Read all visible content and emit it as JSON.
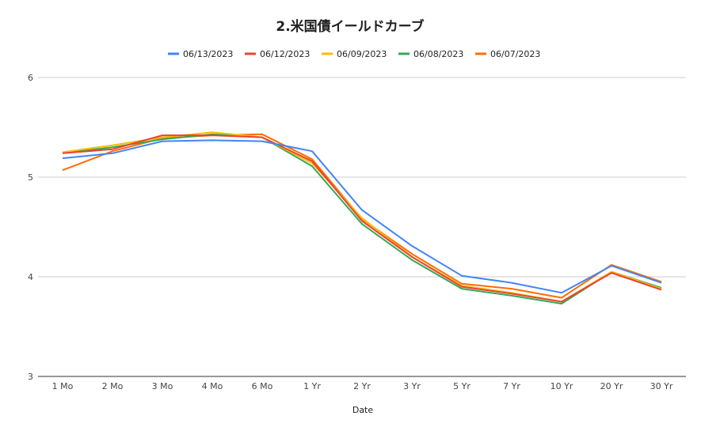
{
  "chart_data": {
    "type": "line",
    "title": "2.米国債イールドカーブ",
    "xlabel": "Date",
    "ylabel": "",
    "categories": [
      "1 Mo",
      "2 Mo",
      "3 Mo",
      "4 Mo",
      "6 Mo",
      "1 Yr",
      "2 Yr",
      "3 Yr",
      "5 Yr",
      "7 Yr",
      "10 Yr",
      "20 Yr",
      "30 Yr"
    ],
    "yticks": [
      "3",
      "4",
      "5",
      "6"
    ],
    "ylim": [
      3,
      6
    ],
    "grid": true,
    "legend_position": "top",
    "series": [
      {
        "name": "06/13/2023",
        "color": "#4285f4",
        "values": [
          5.19,
          5.24,
          5.36,
          5.37,
          5.36,
          5.26,
          4.67,
          4.31,
          4.01,
          3.94,
          3.84,
          4.11,
          3.94
        ]
      },
      {
        "name": "06/12/2023",
        "color": "#ea4335",
        "values": [
          5.24,
          5.28,
          5.42,
          5.42,
          5.4,
          5.16,
          4.56,
          4.2,
          3.9,
          3.83,
          3.75,
          4.04,
          3.87
        ]
      },
      {
        "name": "06/09/2023",
        "color": "#fbbc04",
        "values": [
          5.25,
          5.32,
          5.4,
          5.45,
          5.4,
          5.14,
          4.59,
          4.2,
          3.91,
          3.84,
          3.75,
          4.05,
          3.88
        ]
      },
      {
        "name": "06/08/2023",
        "color": "#34a853",
        "values": [
          5.24,
          5.3,
          5.38,
          5.43,
          5.4,
          5.11,
          4.53,
          4.17,
          3.88,
          3.81,
          3.73,
          4.05,
          3.89
        ]
      },
      {
        "name": "06/07/2023",
        "color": "#ff6d01",
        "values": [
          5.07,
          5.26,
          5.39,
          5.42,
          5.43,
          5.18,
          4.58,
          4.23,
          3.93,
          3.88,
          3.79,
          4.12,
          3.95
        ]
      }
    ]
  }
}
